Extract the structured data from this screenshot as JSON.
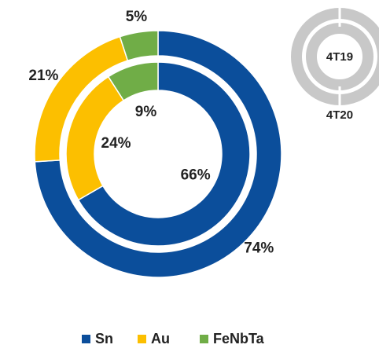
{
  "chart_data": {
    "type": "donut",
    "categories": [
      "Sn",
      "Au",
      "FeNbTa"
    ],
    "colors": [
      "#0b4e9b",
      "#fcbf00",
      "#70ad47"
    ],
    "series": [
      {
        "name": "4T19",
        "values": [
          66,
          24,
          9
        ],
        "value_labels": [
          "66%",
          "24%",
          "9%"
        ]
      },
      {
        "name": "4T20",
        "values": [
          74,
          21,
          5
        ],
        "value_labels": [
          "74%",
          "21%",
          "5%"
        ]
      }
    ],
    "legend": "bottom"
  }
}
